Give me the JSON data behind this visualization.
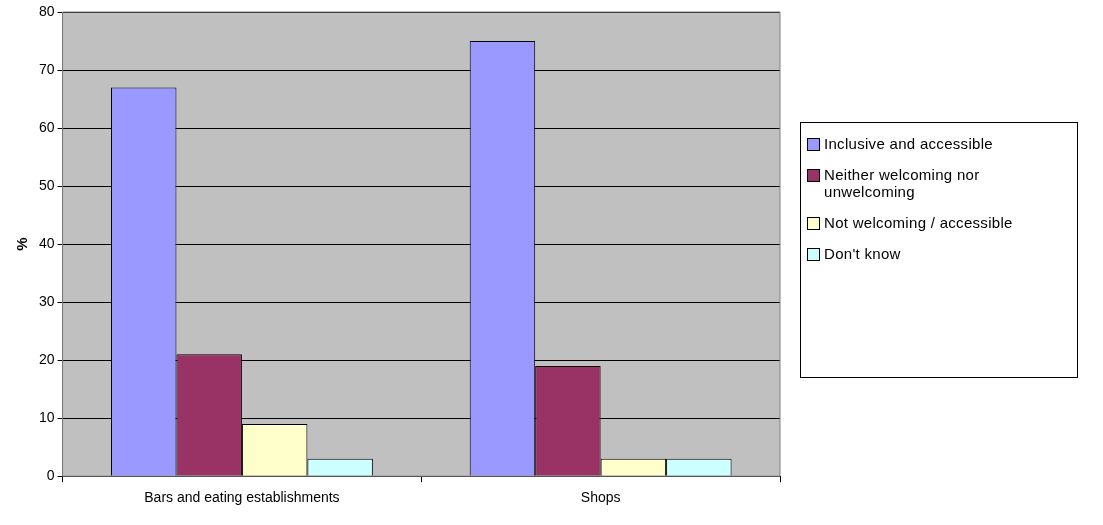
{
  "chart_data": {
    "type": "bar",
    "ylabel": "%",
    "categories": [
      "Bars and eating establishments",
      "Shops"
    ],
    "series": [
      {
        "name": "Inclusive and accessible",
        "color": "#9999ff",
        "values": [
          67,
          75
        ]
      },
      {
        "name": "Neither welcoming nor unwelcoming",
        "color": "#993366",
        "values": [
          21,
          19
        ]
      },
      {
        "name": "Not welcoming / accessible",
        "color": "#ffffcc",
        "values": [
          9,
          3
        ]
      },
      {
        "name": "Don't know",
        "color": "#ccffff",
        "values": [
          3,
          3
        ]
      }
    ],
    "ylim": [
      0,
      80
    ],
    "yticks": [
      0,
      10,
      20,
      30,
      40,
      50,
      60,
      70,
      80
    ],
    "grid": "y",
    "legend": "right"
  }
}
